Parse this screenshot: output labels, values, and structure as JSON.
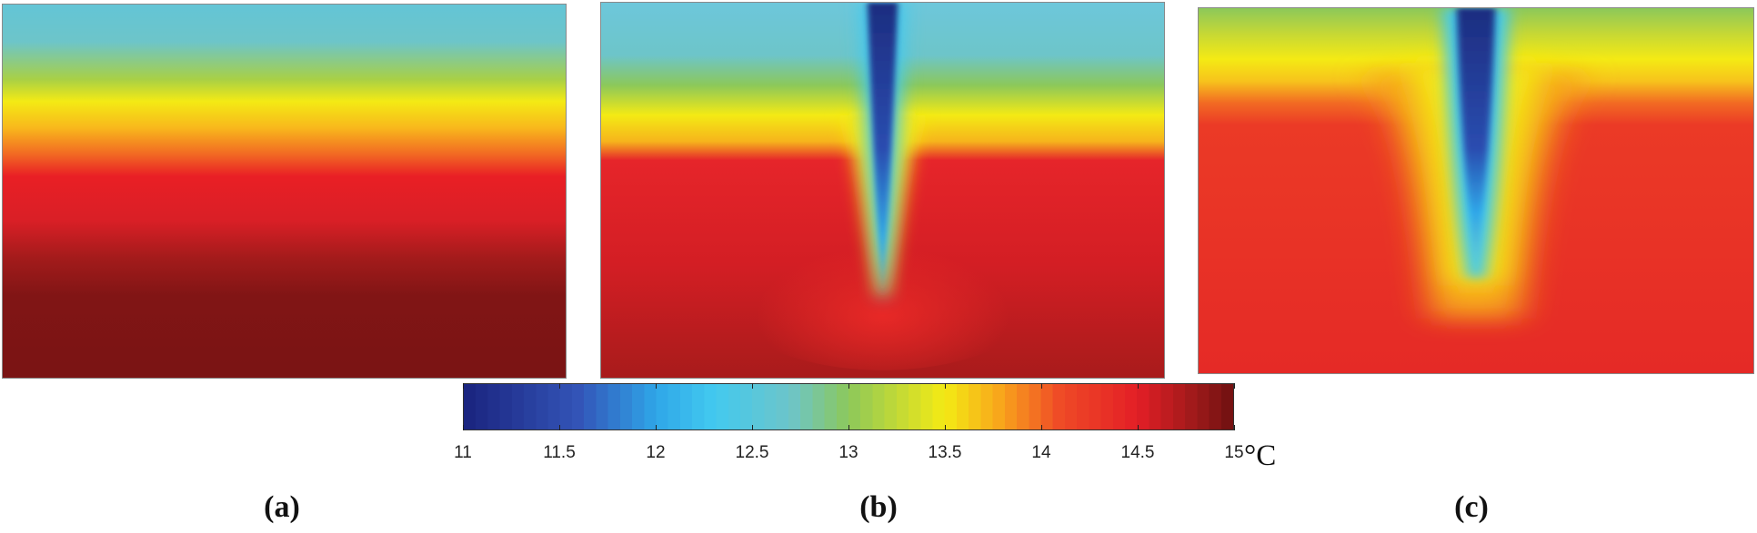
{
  "panels": [
    {
      "id": "a",
      "label": "(a)"
    },
    {
      "id": "b",
      "label": "(b)"
    },
    {
      "id": "c",
      "label": "(c)"
    }
  ],
  "chart_data": {
    "type": "heatmap",
    "title": "",
    "colorbar": {
      "min": 11,
      "max": 15,
      "ticks": [
        "11",
        "11.5",
        "12",
        "12.5",
        "13",
        "13.5",
        "14",
        "14.5",
        "15"
      ],
      "unit": "°C",
      "stops": [
        {
          "value": 11.0,
          "color": "#1a237e"
        },
        {
          "value": 11.6,
          "color": "#3355b8"
        },
        {
          "value": 12.0,
          "color": "#2fa6e8"
        },
        {
          "value": 12.3,
          "color": "#42c9ef"
        },
        {
          "value": 12.7,
          "color": "#6dc5c9"
        },
        {
          "value": 13.0,
          "color": "#8cc85a"
        },
        {
          "value": 13.5,
          "color": "#f4ea14"
        },
        {
          "value": 13.8,
          "color": "#f8a21c"
        },
        {
          "value": 14.1,
          "color": "#ef4a26"
        },
        {
          "value": 14.5,
          "color": "#e31f26"
        },
        {
          "value": 14.8,
          "color": "#9e1a1a"
        },
        {
          "value": 15.0,
          "color": "#6e1010"
        }
      ]
    },
    "panels": [
      {
        "label": "a",
        "profile": "horizontally uniform, increasing with depth from 12.5 °C at top to 15 °C at bottom"
      },
      {
        "label": "b",
        "profile": "cold narrow plume (11 °C) penetrating from the surface into warm layer (14.5 °C)"
      },
      {
        "label": "c",
        "profile": "cold plume (11 °C) with broad yellow halo spreading into warm layer (14.3 °C)"
      }
    ]
  }
}
